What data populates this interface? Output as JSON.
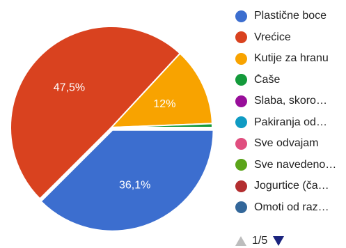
{
  "chart_data": {
    "type": "pie",
    "slices": [
      {
        "label": "Plastične boce",
        "value": 36.1,
        "display": "36,1%",
        "color": "#3c6ecf"
      },
      {
        "label": "Vrećice",
        "value": 47.5,
        "display": "47,5%",
        "color": "#d9421f"
      },
      {
        "label": "Kutije za hranu",
        "value": 12.0,
        "display": "12%",
        "color": "#f8a300"
      },
      {
        "label": "Čaše",
        "value": 0.6,
        "display": "",
        "color": "#149a3b"
      },
      {
        "label": "Slaba, skoro…",
        "value": 0,
        "display": "",
        "color": "#980e9a"
      },
      {
        "label": "Pakiranja od…",
        "value": 0,
        "display": "",
        "color": "#0f9bc3"
      },
      {
        "label": "Sve odvajam",
        "value": 0,
        "display": "",
        "color": "#e04e7f"
      },
      {
        "label": "Sve navedeno…",
        "value": 0,
        "display": "",
        "color": "#5ba41a"
      },
      {
        "label": "Jogurtice (ča…",
        "value": 0,
        "display": "",
        "color": "#b32e30"
      },
      {
        "label": "Omoti od raz…",
        "value": 0,
        "display": "",
        "color": "#33679a"
      }
    ],
    "exploded_slice": "Plastične boce",
    "legend_position": "right"
  },
  "pager": {
    "text": "1/5",
    "up_icon": "triangle-up-icon",
    "down_icon": "triangle-down-icon",
    "up_color": "#bdbdbd",
    "down_color": "#1a237e"
  }
}
